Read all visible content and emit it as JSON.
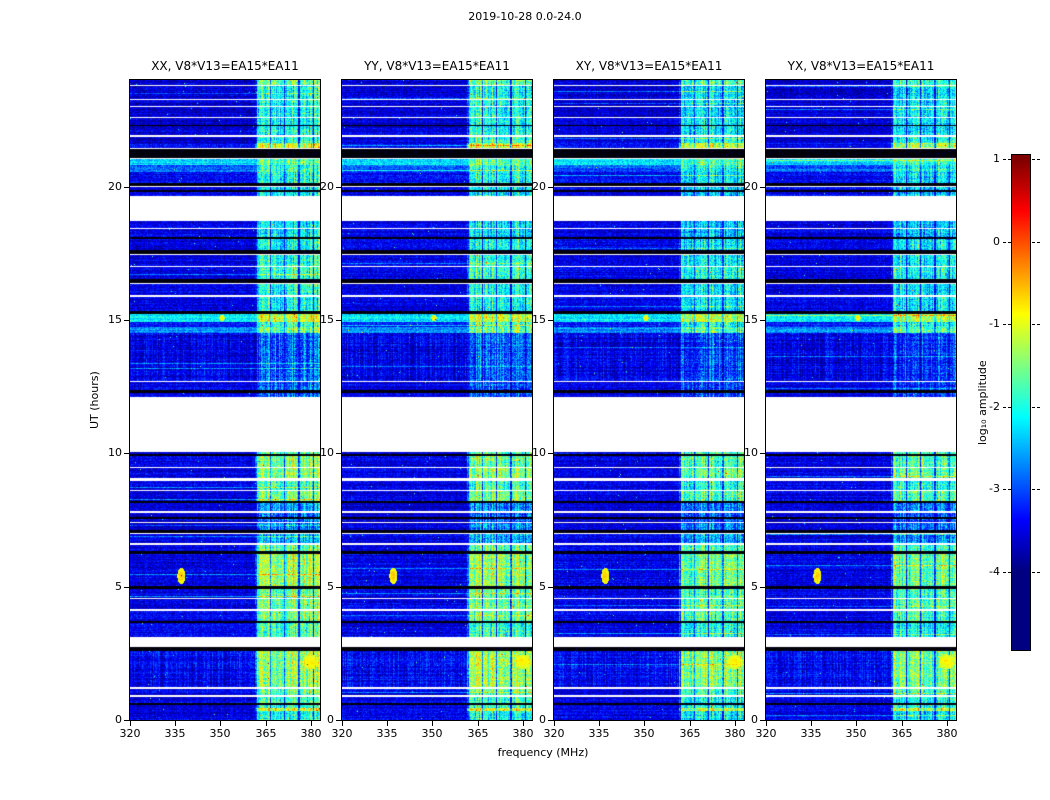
{
  "chart_data": {
    "type": "heatmap",
    "title": "2019-10-28 0.0-24.0",
    "xlabel": "frequency (MHz)",
    "ylabel": "UT (hours)",
    "xlim": [
      320,
      383
    ],
    "ylim": [
      0,
      24
    ],
    "xticks": [
      320,
      335,
      350,
      365,
      380
    ],
    "yticks": [
      0,
      5,
      10,
      15,
      20
    ],
    "panels": [
      {
        "label": "XX, V8*V13=EA15*EA11",
        "band_offset": 0
      },
      {
        "label": "YY, V8*V13=EA15*EA11",
        "band_offset": 0
      },
      {
        "label": "XY, V8*V13=EA15*EA11",
        "band_offset": -0.2
      },
      {
        "label": "YX, V8*V13=EA15*EA11",
        "band_offset": -0.2
      }
    ],
    "colorbar": {
      "label": "log₁₀ amplitude",
      "ticks": [
        1,
        0,
        -1,
        -2,
        -3,
        -4
      ],
      "range": [
        -4,
        1
      ],
      "colormap": "jet"
    },
    "rfi_band_mhz": [
      361.5,
      383
    ],
    "segment_format": [
      "ut_hi",
      "ut_lo",
      "type(n|gap|blk)",
      "base_log10amp",
      "band_log10amp",
      "vertical_streaks"
    ],
    "time_segments": [
      [
        24.0,
        23.82,
        "n",
        -3.6,
        -1.6,
        0
      ],
      [
        23.82,
        23.78,
        "gap",
        null,
        null,
        0
      ],
      [
        23.78,
        23.3,
        "n",
        -3.6,
        -2.0,
        0
      ],
      [
        23.3,
        23.26,
        "gap",
        null,
        null,
        0
      ],
      [
        23.26,
        23.02,
        "n",
        -3.6,
        -2.0,
        0
      ],
      [
        23.02,
        22.98,
        "gap",
        null,
        null,
        0
      ],
      [
        22.98,
        22.6,
        "n",
        -3.6,
        -2.0,
        0
      ],
      [
        22.6,
        22.56,
        "gap",
        null,
        null,
        0
      ],
      [
        22.56,
        22.32,
        "n",
        -3.6,
        -2.0,
        0
      ],
      [
        22.32,
        22.26,
        "blk",
        null,
        null,
        0
      ],
      [
        22.26,
        21.92,
        "n",
        -3.6,
        -2.0,
        0
      ],
      [
        21.92,
        21.87,
        "gap",
        null,
        null,
        0
      ],
      [
        21.87,
        21.62,
        "n",
        -3.6,
        -1.8,
        0
      ],
      [
        21.62,
        21.45,
        "n",
        -3.4,
        -1.0,
        0
      ],
      [
        21.45,
        21.4,
        "gap",
        null,
        null,
        0
      ],
      [
        21.4,
        21.08,
        "blk",
        null,
        null,
        0
      ],
      [
        21.08,
        21.04,
        "gap",
        null,
        null,
        0
      ],
      [
        21.04,
        20.82,
        "n",
        -2.3,
        -1.6,
        0
      ],
      [
        20.82,
        20.55,
        "n",
        -2.9,
        -1.8,
        0
      ],
      [
        20.55,
        20.12,
        "n",
        -3.4,
        -2.0,
        0
      ],
      [
        20.12,
        20.04,
        "blk",
        null,
        null,
        0
      ],
      [
        20.04,
        19.98,
        "gap",
        null,
        null,
        0
      ],
      [
        19.98,
        19.86,
        "n",
        -3.5,
        -2.2,
        0
      ],
      [
        19.86,
        19.8,
        "blk",
        null,
        null,
        0
      ],
      [
        19.8,
        19.66,
        "n",
        -3.5,
        -2.2,
        0
      ],
      [
        19.66,
        18.72,
        "gap",
        null,
        null,
        0
      ],
      [
        18.72,
        18.44,
        "n",
        -3.5,
        -2.2,
        0
      ],
      [
        18.44,
        18.4,
        "gap",
        null,
        null,
        0
      ],
      [
        18.4,
        18.12,
        "n",
        -3.5,
        -2.2,
        0
      ],
      [
        18.12,
        18.04,
        "blk",
        null,
        null,
        0
      ],
      [
        18.04,
        17.62,
        "n",
        -3.5,
        -2.0,
        0
      ],
      [
        17.62,
        17.48,
        "blk",
        null,
        null,
        0
      ],
      [
        17.48,
        17.44,
        "gap",
        null,
        null,
        0
      ],
      [
        17.44,
        17.02,
        "n",
        -3.5,
        -1.9,
        0
      ],
      [
        17.02,
        16.98,
        "gap",
        null,
        null,
        0
      ],
      [
        16.98,
        16.54,
        "n",
        -3.5,
        -1.8,
        0
      ],
      [
        16.54,
        16.4,
        "blk",
        null,
        null,
        0
      ],
      [
        16.4,
        16.36,
        "gap",
        null,
        null,
        0
      ],
      [
        16.36,
        15.92,
        "n",
        -3.5,
        -2.0,
        0
      ],
      [
        15.92,
        15.86,
        "gap",
        null,
        null,
        0
      ],
      [
        15.86,
        15.34,
        "n",
        -3.5,
        -2.0,
        0
      ],
      [
        15.34,
        15.24,
        "blk",
        null,
        null,
        0
      ],
      [
        15.24,
        14.94,
        "n",
        -2.2,
        -1.0,
        0
      ],
      [
        14.94,
        14.72,
        "n",
        -3.3,
        -1.8,
        0
      ],
      [
        14.72,
        14.5,
        "n",
        -2.7,
        -1.5,
        0
      ],
      [
        14.5,
        12.72,
        "n",
        -3.5,
        -2.9,
        1
      ],
      [
        12.72,
        12.68,
        "gap",
        null,
        null,
        0
      ],
      [
        12.68,
        12.38,
        "n",
        -3.5,
        -2.9,
        0
      ],
      [
        12.38,
        12.28,
        "blk",
        null,
        null,
        0
      ],
      [
        12.28,
        12.12,
        "n",
        -3.5,
        -2.9,
        0
      ],
      [
        12.12,
        10.06,
        "gap",
        null,
        null,
        0
      ],
      [
        10.06,
        9.96,
        "n",
        -3.5,
        -1.6,
        0
      ],
      [
        9.96,
        9.9,
        "blk",
        null,
        null,
        0
      ],
      [
        9.9,
        9.48,
        "n",
        -3.5,
        -1.5,
        0
      ],
      [
        9.48,
        9.44,
        "gap",
        null,
        null,
        0
      ],
      [
        9.44,
        9.06,
        "n",
        -3.5,
        -1.4,
        0
      ],
      [
        9.06,
        8.96,
        "gap",
        null,
        null,
        0
      ],
      [
        8.96,
        8.62,
        "n",
        -3.5,
        -1.8,
        0
      ],
      [
        8.62,
        8.58,
        "gap",
        null,
        null,
        0
      ],
      [
        8.58,
        8.22,
        "n",
        -3.5,
        -1.5,
        0
      ],
      [
        8.22,
        8.12,
        "blk",
        null,
        null,
        0
      ],
      [
        8.12,
        7.82,
        "n",
        -3.6,
        -2.6,
        0
      ],
      [
        7.82,
        7.78,
        "gap",
        null,
        null,
        0
      ],
      [
        7.78,
        7.62,
        "n",
        -3.6,
        -2.8,
        0
      ],
      [
        7.62,
        7.52,
        "blk",
        null,
        null,
        0
      ],
      [
        7.52,
        7.42,
        "n",
        -3.6,
        -2.8,
        0
      ],
      [
        7.42,
        7.38,
        "gap",
        null,
        null,
        0
      ],
      [
        7.38,
        7.12,
        "n",
        -3.6,
        -2.6,
        0
      ],
      [
        7.12,
        7.02,
        "blk",
        null,
        null,
        0
      ],
      [
        7.02,
        6.98,
        "gap",
        null,
        null,
        0
      ],
      [
        6.98,
        6.62,
        "n",
        -3.5,
        -2.4,
        0
      ],
      [
        6.62,
        6.56,
        "gap",
        null,
        null,
        0
      ],
      [
        6.56,
        6.32,
        "n",
        -3.5,
        -1.6,
        0
      ],
      [
        6.32,
        6.22,
        "blk",
        null,
        null,
        0
      ],
      [
        6.22,
        5.02,
        "n",
        -3.5,
        -1.4,
        0
      ],
      [
        5.02,
        4.92,
        "blk",
        null,
        null,
        0
      ],
      [
        4.92,
        4.56,
        "n",
        -3.5,
        -1.6,
        0
      ],
      [
        4.56,
        4.52,
        "gap",
        null,
        null,
        0
      ],
      [
        4.52,
        4.18,
        "n",
        -3.5,
        -1.5,
        0
      ],
      [
        4.18,
        4.08,
        "gap",
        null,
        null,
        0
      ],
      [
        4.08,
        3.72,
        "n",
        -3.5,
        -1.6,
        0
      ],
      [
        3.72,
        3.62,
        "blk",
        null,
        null,
        0
      ],
      [
        3.62,
        3.12,
        "n",
        -3.5,
        -1.8,
        0
      ],
      [
        3.12,
        2.72,
        "gap",
        null,
        null,
        0
      ],
      [
        2.72,
        2.58,
        "blk",
        null,
        null,
        0
      ],
      [
        2.58,
        1.22,
        "n",
        -3.4,
        -1.3,
        1
      ],
      [
        1.22,
        1.18,
        "gap",
        null,
        null,
        0
      ],
      [
        1.18,
        0.92,
        "n",
        -3.5,
        -1.6,
        0
      ],
      [
        0.92,
        0.88,
        "gap",
        null,
        null,
        0
      ],
      [
        0.88,
        0.62,
        "n",
        -3.5,
        -1.8,
        0
      ],
      [
        0.62,
        0.56,
        "blk",
        null,
        null,
        0
      ],
      [
        0.56,
        0.46,
        "n",
        -3.5,
        -1.8,
        0
      ],
      [
        0.46,
        0.32,
        "n",
        -3.5,
        -0.9,
        0
      ],
      [
        0.32,
        0.0,
        "n",
        -3.5,
        -2.0,
        0
      ]
    ],
    "blobs": [
      {
        "ut": 5.4,
        "mhz": 337.0,
        "du": 0.3,
        "df": 1.3,
        "v": -1.0
      },
      {
        "ut": 15.08,
        "mhz": 350.5,
        "du": 0.12,
        "df": 0.9,
        "v": -1.2
      },
      {
        "ut": 2.18,
        "mhz": 380.0,
        "du": 0.28,
        "df": 2.8,
        "v": -1.2
      }
    ]
  }
}
